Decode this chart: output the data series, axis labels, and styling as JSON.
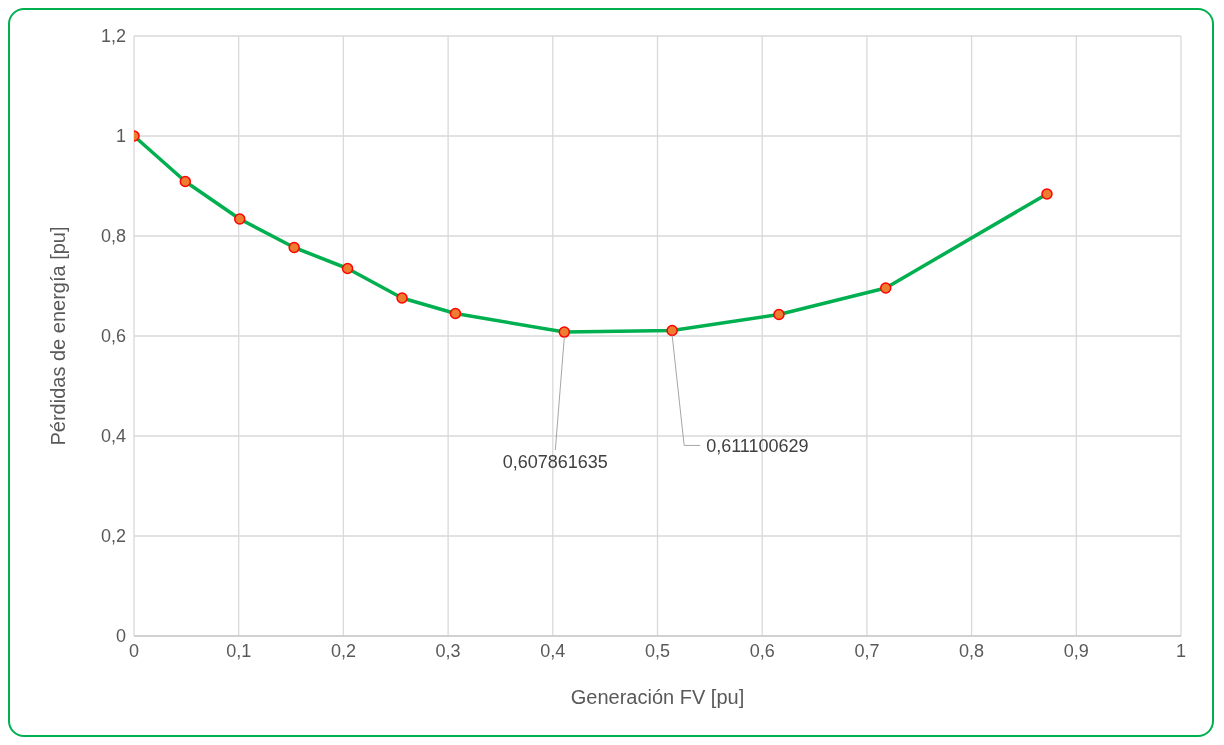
{
  "chart_data": {
    "type": "line",
    "xlabel": "Generación FV [pu]",
    "ylabel": "Pérdidas de energía [pu]",
    "x": [
      0,
      0.049,
      0.101,
      0.153,
      0.204,
      0.256,
      0.307,
      0.411,
      0.514,
      0.616,
      0.718,
      0.872
    ],
    "series": [
      {
        "color": "#00b050",
        "values": [
          1,
          0.909,
          0.834,
          0.777,
          0.735,
          0.676,
          0.645,
          0.607861635,
          0.611100629,
          0.643,
          0.696,
          0.884
        ],
        "value_labels": [
          null,
          null,
          null,
          null,
          null,
          null,
          null,
          "0,607861635",
          "0,611100629",
          null,
          null,
          null
        ]
      }
    ],
    "marker": "circle",
    "line_style": "solid",
    "grid": true,
    "legend": false,
    "xlim": [
      0,
      1
    ],
    "xticks": [
      0,
      {
        "value": 0.1,
        "label": "0,1"
      },
      {
        "value": 0.2,
        "label": "0,2"
      },
      {
        "value": 0.3,
        "label": "0,3"
      },
      {
        "value": 0.4,
        "label": "0,4"
      },
      {
        "value": 0.5,
        "label": "0,5"
      },
      {
        "value": 0.6,
        "label": "0,6"
      },
      {
        "value": 0.7,
        "label": "0,7"
      },
      {
        "value": 0.8,
        "label": "0,8"
      },
      {
        "value": 0.9,
        "label": "0,9"
      },
      1
    ],
    "ylim": [
      0,
      1.2
    ],
    "yticks": [
      0,
      {
        "value": 0.2,
        "label": "0,2"
      },
      {
        "value": 0.4,
        "label": "0,4"
      },
      {
        "value": 0.6,
        "label": "0,6"
      },
      {
        "value": 0.8,
        "label": "0,8"
      },
      1,
      {
        "value": 1.2,
        "label": "1,2"
      }
    ]
  }
}
